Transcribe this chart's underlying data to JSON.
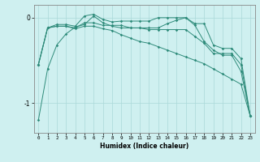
{
  "xlabel": "Humidex (Indice chaleur)",
  "x": [
    0,
    1,
    2,
    3,
    4,
    5,
    6,
    7,
    8,
    9,
    10,
    11,
    12,
    13,
    14,
    15,
    16,
    17,
    18,
    19,
    20,
    21,
    22,
    23
  ],
  "line1": [
    -0.55,
    -0.12,
    -0.08,
    -0.08,
    -0.1,
    0.02,
    0.04,
    -0.02,
    -0.05,
    -0.04,
    -0.04,
    -0.04,
    -0.04,
    0.0,
    0.0,
    0.0,
    0.0,
    -0.07,
    -0.07,
    -0.32,
    -0.36,
    -0.36,
    -0.48,
    -1.15
  ],
  "line2": [
    -0.55,
    -0.12,
    -0.1,
    -0.1,
    -0.12,
    -0.06,
    -0.06,
    -0.09,
    -0.09,
    -0.09,
    -0.12,
    -0.12,
    -0.14,
    -0.14,
    -0.14,
    -0.14,
    -0.14,
    -0.22,
    -0.3,
    -0.42,
    -0.42,
    -0.42,
    -0.55,
    -1.15
  ],
  "line3": [
    -0.55,
    -0.12,
    -0.1,
    -0.1,
    -0.13,
    -0.1,
    -0.1,
    -0.13,
    -0.15,
    -0.2,
    -0.24,
    -0.28,
    -0.3,
    -0.34,
    -0.38,
    -0.42,
    -0.46,
    -0.5,
    -0.54,
    -0.6,
    -0.66,
    -0.72,
    -0.78,
    -1.15
  ],
  "line4": [
    -1.2,
    -0.6,
    -0.32,
    -0.19,
    -0.11,
    -0.08,
    0.02,
    -0.06,
    -0.1,
    -0.12,
    -0.12,
    -0.12,
    -0.12,
    -0.12,
    -0.07,
    -0.03,
    0.0,
    -0.09,
    -0.28,
    -0.38,
    -0.44,
    -0.44,
    -0.63,
    -1.15
  ],
  "line_color": "#2e8b7a",
  "bg_color": "#cff0f0",
  "grid_color": "#aad8d8",
  "ylim": [
    -1.35,
    0.15
  ],
  "yticks": [
    0,
    -1
  ],
  "ytick_labels": [
    "0",
    "-1"
  ]
}
